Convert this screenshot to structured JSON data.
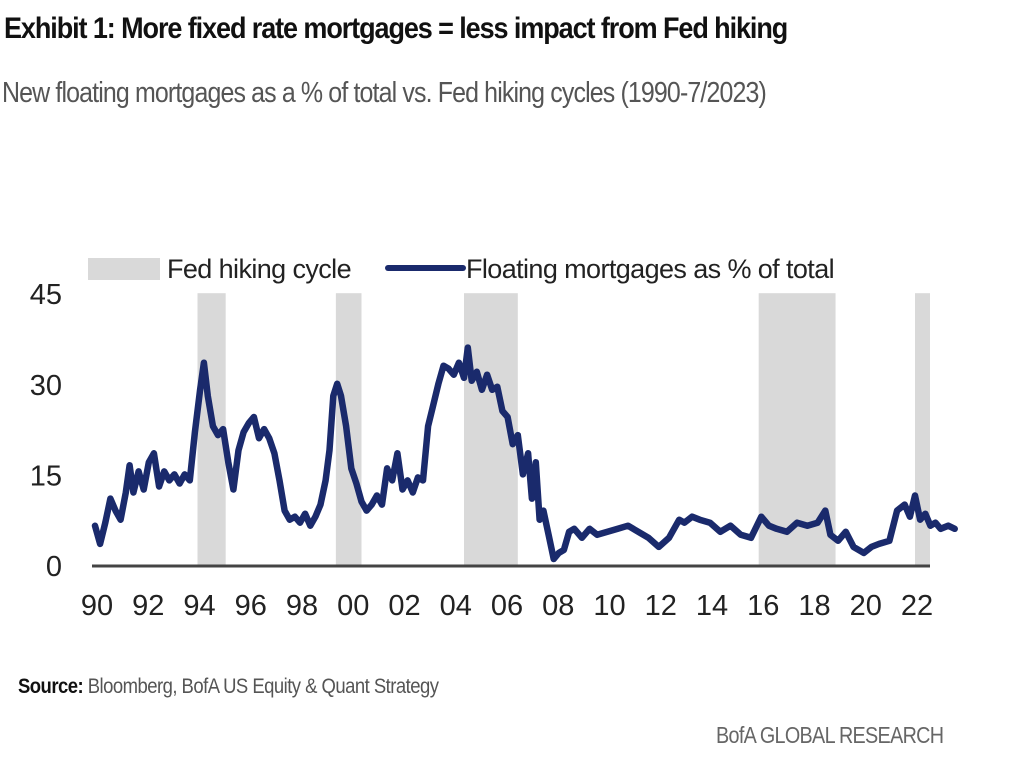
{
  "header": {
    "title": "Exhibit 1: More fixed rate mortgages = less impact from Fed hiking",
    "subtitle": "New floating mortgages as a % of total vs. Fed hiking cycles (1990-7/2023)"
  },
  "footer": {
    "source_label": "Source:",
    "source_text": " Bloomberg, BofA US Equity & Quant Strategy",
    "brand": "BofA GLOBAL RESEARCH"
  },
  "colors": {
    "line": "#1a2a6c",
    "band": "#d9d9d9",
    "axis": "#444444"
  },
  "chart_data": {
    "type": "line",
    "title": "Exhibit 1: More fixed rate mortgages = less impact from Fed hiking",
    "subtitle": "New floating mortgages as a % of total vs. Fed hiking cycles (1990-7/2023)",
    "xlabel": "",
    "ylabel": "",
    "xlim": [
      1990,
      2023.6
    ],
    "ylim": [
      0,
      45
    ],
    "yticks": [
      0,
      15,
      30,
      45
    ],
    "xticks": [
      1990,
      1992,
      1994,
      1996,
      1998,
      2000,
      2002,
      2004,
      2006,
      2008,
      2010,
      2012,
      2014,
      2016,
      2018,
      2020,
      2022
    ],
    "xtick_labels": [
      "90",
      "92",
      "94",
      "96",
      "98",
      "00",
      "02",
      "04",
      "06",
      "08",
      "10",
      "12",
      "14",
      "16",
      "18",
      "20",
      "22"
    ],
    "grid": false,
    "legend": {
      "placement": "top",
      "entries": [
        {
          "label": "Fed hiking cycle",
          "kind": "band"
        },
        {
          "label": "Floating mortgages as % of total",
          "kind": "line"
        }
      ]
    },
    "bands": {
      "name": "Fed hiking cycle",
      "ranges": [
        [
          1994.0,
          1995.1
        ],
        [
          1999.4,
          2000.4
        ],
        [
          2004.4,
          2006.5
        ],
        [
          2015.9,
          2018.9
        ],
        [
          2022.0,
          2023.6
        ]
      ]
    },
    "series": [
      {
        "name": "Floating mortgages as % of total",
        "x": [
          1990.0,
          1990.2,
          1990.4,
          1990.6,
          1990.8,
          1991.0,
          1991.2,
          1991.35,
          1991.5,
          1991.7,
          1991.9,
          1992.1,
          1992.3,
          1992.5,
          1992.7,
          1992.9,
          1993.1,
          1993.3,
          1993.5,
          1993.7,
          1993.9,
          1994.1,
          1994.25,
          1994.4,
          1994.6,
          1994.8,
          1995.0,
          1995.2,
          1995.4,
          1995.6,
          1995.8,
          1996.0,
          1996.2,
          1996.4,
          1996.6,
          1996.8,
          1997.0,
          1997.2,
          1997.4,
          1997.6,
          1997.8,
          1998.0,
          1998.2,
          1998.4,
          1998.6,
          1998.8,
          1999.0,
          1999.15,
          1999.3,
          1999.45,
          1999.6,
          1999.8,
          2000.0,
          2000.2,
          2000.4,
          2000.6,
          2000.8,
          2001.0,
          2001.2,
          2001.4,
          2001.6,
          2001.8,
          2002.0,
          2002.2,
          2002.4,
          2002.6,
          2002.8,
          2003.0,
          2003.2,
          2003.4,
          2003.6,
          2003.8,
          2004.0,
          2004.2,
          2004.4,
          2004.55,
          2004.7,
          2004.9,
          2005.1,
          2005.3,
          2005.5,
          2005.7,
          2005.9,
          2006.1,
          2006.3,
          2006.5,
          2006.7,
          2006.9,
          2007.05,
          2007.2,
          2007.35,
          2007.5,
          2007.7,
          2007.9,
          2008.1,
          2008.3,
          2008.5,
          2008.7,
          2009.0,
          2009.3,
          2009.6,
          2010.0,
          2010.4,
          2010.8,
          2011.2,
          2011.6,
          2012.0,
          2012.4,
          2012.8,
          2013.0,
          2013.3,
          2013.6,
          2014.0,
          2014.4,
          2014.8,
          2015.2,
          2015.6,
          2016.0,
          2016.3,
          2016.6,
          2017.0,
          2017.4,
          2017.8,
          2018.2,
          2018.5,
          2018.7,
          2019.0,
          2019.3,
          2019.6,
          2020.0,
          2020.3,
          2020.6,
          2021.0,
          2021.3,
          2021.6,
          2021.8,
          2022.0,
          2022.2,
          2022.4,
          2022.6,
          2022.8,
          2023.0,
          2023.3,
          2023.55
        ],
        "y": [
          6.5,
          3.5,
          7.0,
          11.0,
          9.0,
          7.5,
          12.0,
          16.5,
          12.0,
          15.5,
          12.5,
          17.0,
          18.5,
          13.0,
          15.5,
          14.0,
          15.0,
          13.5,
          15.0,
          14.0,
          22.0,
          29.0,
          33.5,
          28.0,
          23.0,
          21.5,
          22.5,
          17.0,
          12.5,
          19.0,
          22.0,
          23.5,
          24.5,
          21.0,
          22.5,
          21.0,
          18.5,
          14.0,
          9.0,
          7.5,
          8.0,
          7.0,
          8.5,
          6.5,
          8.0,
          10.0,
          14.0,
          19.0,
          28.0,
          30.0,
          28.0,
          23.0,
          16.0,
          13.5,
          10.5,
          9.0,
          10.0,
          11.5,
          10.0,
          16.0,
          14.0,
          18.5,
          12.5,
          14.0,
          12.0,
          14.5,
          14.0,
          23.0,
          26.5,
          30.0,
          33.0,
          32.5,
          31.5,
          33.5,
          31.0,
          36.0,
          30.5,
          32.0,
          29.0,
          31.5,
          29.0,
          29.5,
          25.5,
          24.5,
          20.0,
          21.5,
          15.0,
          18.5,
          11.0,
          17.0,
          7.5,
          9.0,
          5.0,
          1.0,
          2.0,
          2.5,
          5.5,
          6.0,
          4.5,
          6.0,
          5.0,
          5.5,
          6.0,
          6.5,
          5.5,
          4.5,
          3.0,
          4.5,
          7.5,
          7.0,
          8.0,
          7.5,
          7.0,
          5.5,
          6.5,
          5.0,
          4.5,
          8.0,
          6.5,
          6.0,
          5.5,
          7.0,
          6.5,
          7.0,
          9.0,
          5.0,
          4.0,
          5.5,
          3.0,
          2.0,
          3.0,
          3.5,
          4.0,
          9.0,
          10.0,
          8.0,
          11.5,
          7.5,
          8.5,
          6.5,
          7.0,
          6.0,
          6.5,
          6.0
        ]
      }
    ]
  }
}
